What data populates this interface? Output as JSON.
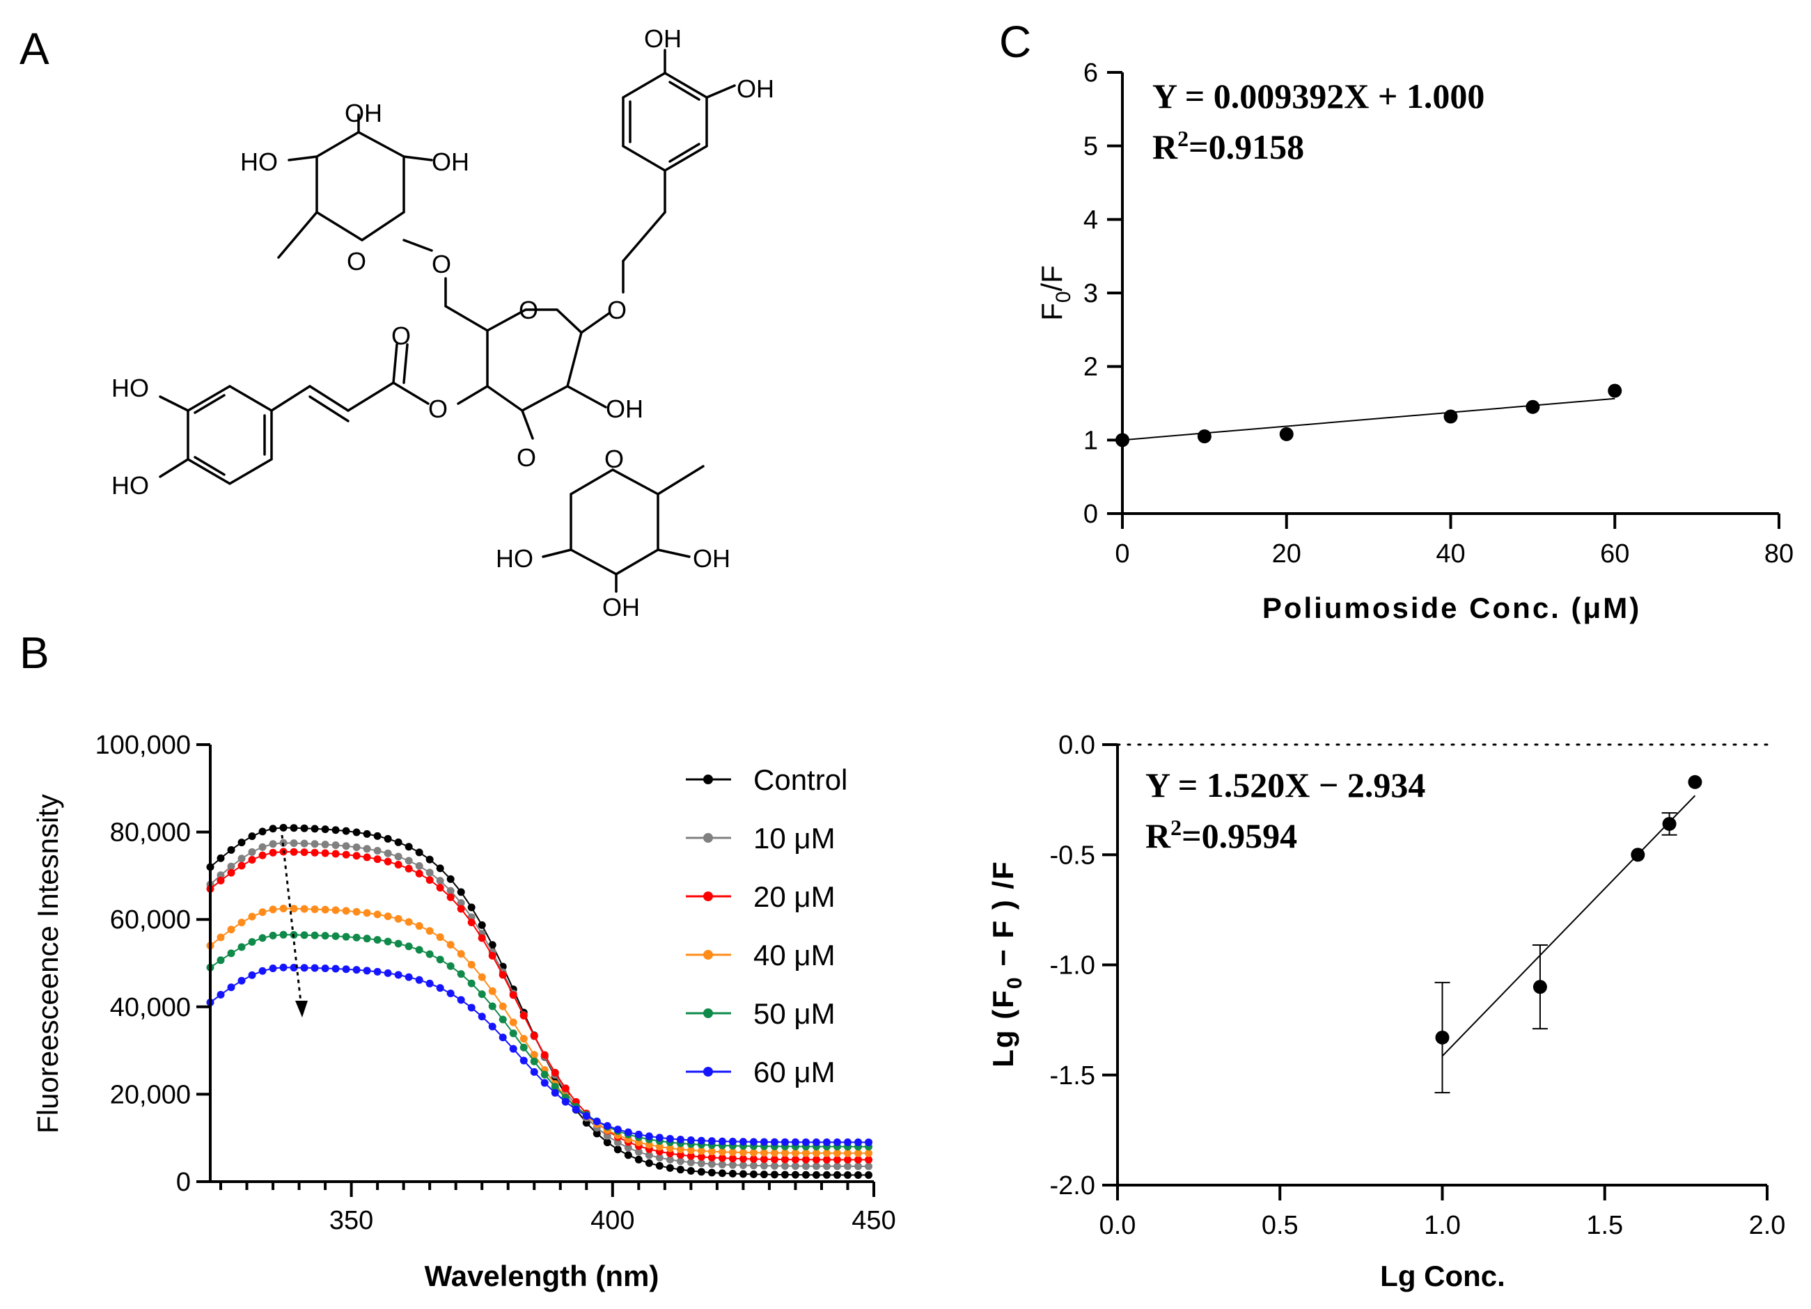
{
  "panels": {
    "a": "A",
    "b": "B",
    "c": "C"
  },
  "structure": {
    "atoms": {
      "oh": "OH",
      "ho": "HO",
      "o": "O"
    }
  },
  "chart_data": [
    {
      "id": "B",
      "type": "line",
      "title": "",
      "xlabel": "Wavelength (nm)",
      "ylabel": "Fluoreesceence Intesnsity",
      "xlim": [
        323,
        450
      ],
      "ylim": [
        0,
        100000
      ],
      "xticks": [
        350,
        400,
        450
      ],
      "xtick_labels": [
        "350",
        "400",
        "450"
      ],
      "yticks": [
        0,
        20000,
        40000,
        60000,
        80000,
        100000
      ],
      "ytick_labels": [
        "0",
        "20,000",
        "40,000",
        "60,000",
        "80,000",
        "100,000"
      ],
      "x_step": 2,
      "legend_position": "right",
      "series": [
        {
          "name": "Control",
          "color": "#000000",
          "peak": 81000,
          "start": 72000,
          "tail": 1500
        },
        {
          "name": "10 μM",
          "color": "#808080",
          "peak": 77500,
          "start": 68000,
          "tail": 3500
        },
        {
          "name": "20 μM",
          "color": "#ff0000",
          "peak": 75500,
          "start": 67000,
          "tail": 5000
        },
        {
          "name": "40 μM",
          "color": "#ff8c1a",
          "peak": 62500,
          "start": 54000,
          "tail": 6500
        },
        {
          "name": "50 μM",
          "color": "#0f8a4a",
          "peak": 56500,
          "start": 49000,
          "tail": 8000
        },
        {
          "name": "60 μM",
          "color": "#1414ff",
          "peak": 49000,
          "start": 41000,
          "tail": 9000
        }
      ]
    },
    {
      "id": "C",
      "type": "scatter",
      "xlabel": "Poliumoside Conc. (μM)",
      "ylabel_main": "F",
      "ylabel_sub": "0",
      "ylabel_rest": "/F",
      "xlim": [
        0,
        80
      ],
      "ylim": [
        0,
        6
      ],
      "xticks": [
        0,
        20,
        40,
        60,
        80
      ],
      "yticks": [
        0,
        1,
        2,
        3,
        4,
        5,
        6
      ],
      "x": [
        0,
        10,
        20,
        40,
        50,
        60
      ],
      "y": [
        1.0,
        1.05,
        1.08,
        1.32,
        1.45,
        1.67
      ],
      "fit": {
        "slope": 0.009392,
        "intercept": 1.0,
        "x_range": [
          0,
          60
        ]
      },
      "equation": "Y = 0.009392X + 1.000",
      "r2_label": "R",
      "r2_sup": "2",
      "r2_value": "=0.9158"
    },
    {
      "id": "D",
      "type": "scatter",
      "xlabel": "Lg Conc.",
      "ylabel_prefix": "Lg (F",
      "ylabel_sub": "0",
      "ylabel_rest": " − F ) /F",
      "xlim": [
        0,
        2
      ],
      "ylim": [
        -2,
        0
      ],
      "xticks": [
        0.0,
        0.5,
        1.0,
        1.5,
        2.0
      ],
      "xtick_labels": [
        "0.0",
        "0.5",
        "1.0",
        "1.5",
        "2.0"
      ],
      "yticks": [
        0.0,
        -0.5,
        -1.0,
        -1.5,
        -2.0
      ],
      "ytick_labels": [
        "0.0",
        "-0.5",
        "-1.0",
        "-1.5",
        "-2.0"
      ],
      "x": [
        1.0,
        1.301,
        1.602,
        1.699,
        1.778
      ],
      "y": [
        -1.33,
        -1.1,
        -0.5,
        -0.36,
        -0.17
      ],
      "err": [
        0.25,
        0.19,
        0.0,
        0.05,
        0.0
      ],
      "fit": {
        "slope": 1.52,
        "intercept": -2.934,
        "x_range": [
          1.0,
          1.778
        ]
      },
      "reference_line_y": 0.0,
      "equation": "Y = 1.520X − 2.934",
      "r2_label": "R",
      "r2_sup": "2",
      "r2_value": "=0.9594"
    }
  ]
}
